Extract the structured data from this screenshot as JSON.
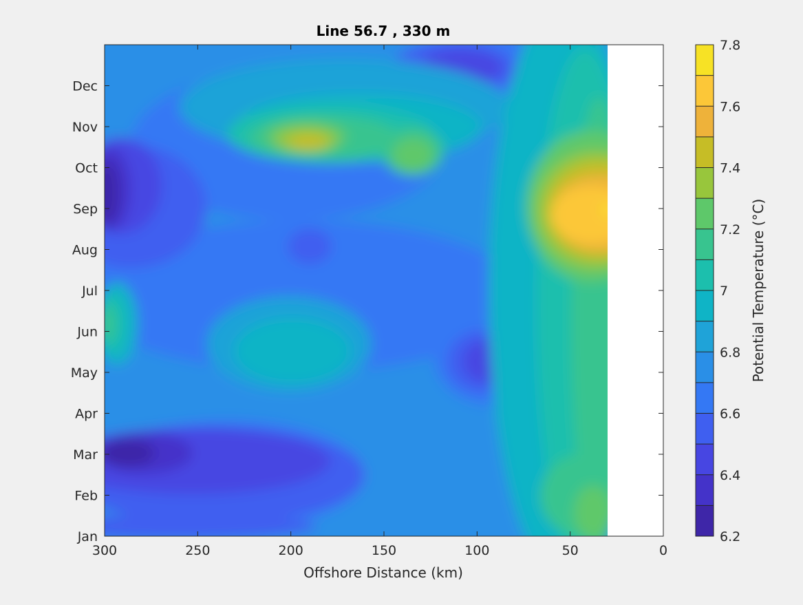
{
  "chart_data": {
    "type": "heatmap",
    "subtype": "filled-contour",
    "title": "Line 56.7 , 330 m",
    "xlabel": "Offshore Distance (km)",
    "ylabel": "",
    "x_direction": "reversed",
    "xlim": [
      0,
      300
    ],
    "x_ticks": [
      "300",
      "250",
      "200",
      "150",
      "100",
      "50",
      "0"
    ],
    "y_ticks": [
      "Jan",
      "Feb",
      "Mar",
      "Apr",
      "May",
      "Jun",
      "Jul",
      "Aug",
      "Sep",
      "Oct",
      "Nov",
      "Dec"
    ],
    "data_coverage_x": [
      30,
      300
    ],
    "no_data_region_x": [
      0,
      30
    ],
    "colorbar": {
      "label": "Potential Temperature (°C)",
      "range": [
        6.2,
        7.8
      ],
      "levels": [
        6.2,
        6.3,
        6.4,
        6.5,
        6.6,
        6.7,
        6.8,
        6.9,
        7.0,
        7.1,
        7.2,
        7.3,
        7.4,
        7.5,
        7.6,
        7.7,
        7.8
      ],
      "tick_labels": [
        "6.2",
        "6.4",
        "6.6",
        "6.8",
        "7",
        "7.2",
        "7.4",
        "7.6",
        "7.8"
      ],
      "colors": [
        "#3e26a8",
        "#4433c9",
        "#4746e2",
        "#3f5ff0",
        "#3478f4",
        "#2a8fe7",
        "#1fa3d8",
        "#0fb4c6",
        "#1cbfad",
        "#38c48f",
        "#5ec86a",
        "#98c63c",
        "#c6bd26",
        "#eeb23a",
        "#fcc738",
        "#f7e225"
      ]
    },
    "approx_features": [
      {
        "description": "warm maximum",
        "x_km": 37,
        "month": "Sep",
        "value": 7.65
      },
      {
        "description": "warm patch",
        "x_km": 188,
        "month": "Nov",
        "value": 7.45
      },
      {
        "description": "cold minimum",
        "x_km": 298,
        "month": "Sep",
        "value": 6.25
      },
      {
        "description": "cold minimum",
        "x_km": 285,
        "month": "Mar",
        "value": 6.3
      },
      {
        "description": "warm band near coast",
        "x_km": 40,
        "month": "Jan",
        "value": 7.2
      }
    ]
  }
}
